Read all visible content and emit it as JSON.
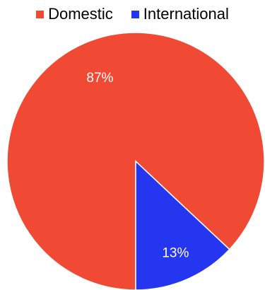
{
  "chart_data": {
    "type": "pie",
    "categories": [
      "Domestic",
      "International"
    ],
    "values": [
      87,
      13
    ],
    "data_labels": [
      "87%",
      "13%"
    ],
    "colors": [
      "#f04a34",
      "#2436f0"
    ],
    "legend_position": "top",
    "start_angle": "bottom, counter-clockwise for first slice"
  },
  "legend": {
    "items": [
      {
        "label": "Domestic",
        "color": "#f04a34"
      },
      {
        "label": "International",
        "color": "#2436f0"
      }
    ]
  }
}
